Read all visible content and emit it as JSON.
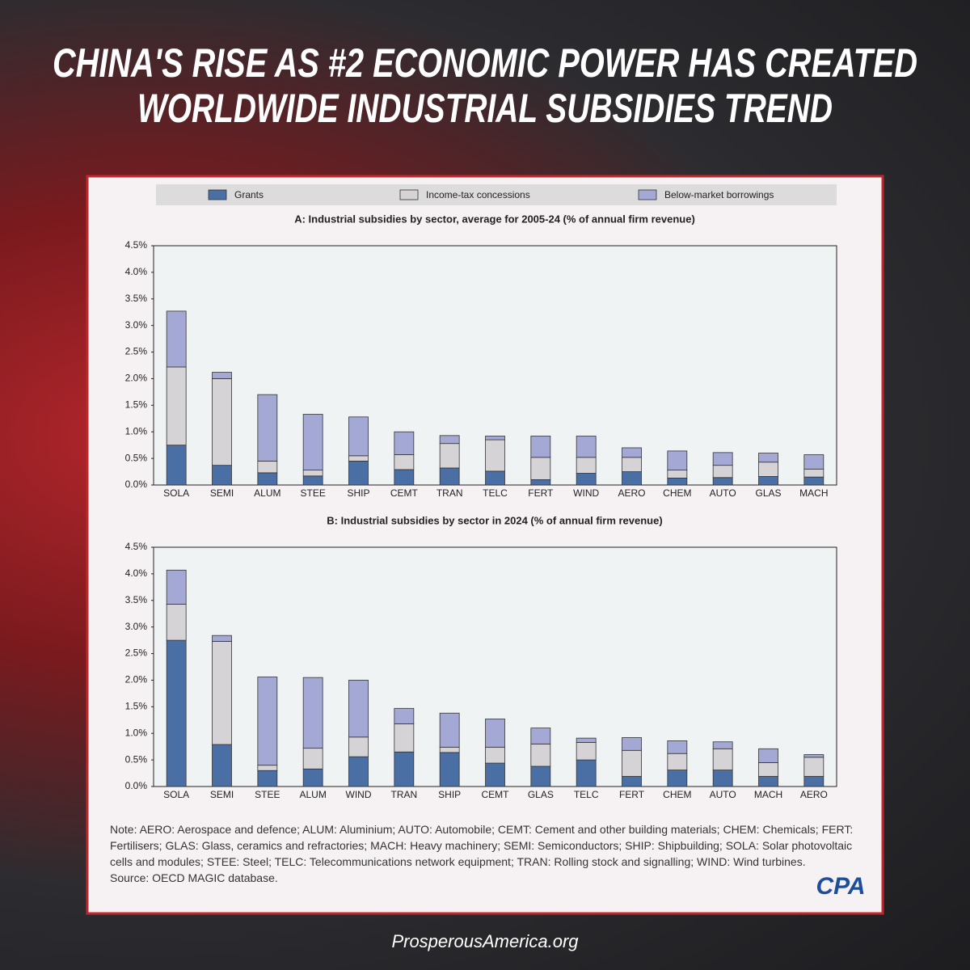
{
  "headline": [
    "CHINA'S RISE AS #2 ECONOMIC POWER HAS CREATED",
    "WORLDWIDE INDUSTRIAL SUBSIDIES TREND"
  ],
  "chart_data": [
    {
      "type": "stacked_bar",
      "title": "A: Industrial subsidies by sector, average for 2005-24 (% of annual firm revenue)",
      "categories": [
        "SOLA",
        "SEMI",
        "ALUM",
        "STEE",
        "SHIP",
        "CEMT",
        "TRAN",
        "TELC",
        "FERT",
        "WIND",
        "AERO",
        "CHEM",
        "AUTO",
        "GLAS",
        "MACH"
      ],
      "series": [
        {
          "name": "Grants",
          "color": "#4a6fa5",
          "values": [
            0.75,
            0.37,
            0.23,
            0.17,
            0.45,
            0.29,
            0.32,
            0.26,
            0.1,
            0.22,
            0.25,
            0.13,
            0.14,
            0.16,
            0.15
          ]
        },
        {
          "name": "Income-tax concessions",
          "color": "#d6d3d6",
          "values": [
            1.47,
            1.63,
            0.22,
            0.11,
            0.1,
            0.28,
            0.46,
            0.59,
            0.42,
            0.3,
            0.27,
            0.15,
            0.23,
            0.27,
            0.15
          ]
        },
        {
          "name": "Below-market borrowings",
          "color": "#a3a9d4",
          "values": [
            1.05,
            0.12,
            1.25,
            1.05,
            0.73,
            0.43,
            0.15,
            0.07,
            0.4,
            0.4,
            0.18,
            0.36,
            0.24,
            0.17,
            0.27
          ]
        }
      ],
      "ylim": [
        0,
        4.5
      ],
      "yticks": [
        {
          "value": 0,
          "label": "0.0%"
        },
        {
          "value": 0.5,
          "label": "0.5%"
        },
        {
          "value": 1,
          "label": "1.0%"
        },
        {
          "value": 1.5,
          "label": "1.5%"
        },
        {
          "value": 2,
          "label": "2.0%"
        },
        {
          "value": 2.5,
          "label": "2.5%"
        },
        {
          "value": 3,
          "label": "3.0%"
        },
        {
          "value": 3.5,
          "label": "3.5%"
        },
        {
          "value": 4,
          "label": "4.0%"
        },
        {
          "value": 4.5,
          "label": "4.5%"
        }
      ]
    },
    {
      "type": "stacked_bar",
      "title": "B: Industrial subsidies by sector in 2024 (% of annual firm revenue)",
      "categories": [
        "SOLA",
        "SEMI",
        "STEE",
        "ALUM",
        "WIND",
        "TRAN",
        "SHIP",
        "CEMT",
        "GLAS",
        "TELC",
        "FERT",
        "CHEM",
        "AUTO",
        "MACH",
        "AERO"
      ],
      "series": [
        {
          "color": "#4a6fa5",
          "values": [
            2.75,
            0.79,
            0.3,
            0.33,
            0.56,
            0.65,
            0.64,
            0.44,
            0.38,
            0.5,
            0.19,
            0.31,
            0.31,
            0.19,
            0.19
          ]
        },
        {
          "color": "#d6d3d6",
          "values": [
            0.68,
            1.94,
            0.1,
            0.39,
            0.37,
            0.53,
            0.1,
            0.3,
            0.42,
            0.33,
            0.49,
            0.31,
            0.4,
            0.26,
            0.36
          ]
        },
        {
          "color": "#a3a9d4",
          "values": [
            0.64,
            0.11,
            1.66,
            1.33,
            1.07,
            0.29,
            0.64,
            0.53,
            0.3,
            0.08,
            0.24,
            0.24,
            0.13,
            0.26,
            0.05
          ]
        }
      ],
      "ylim": [
        0,
        4.5
      ],
      "yticks": [
        {
          "value": 0,
          "label": "0.0%"
        },
        {
          "value": 0.5,
          "label": "0.5%"
        },
        {
          "value": 1,
          "label": "1.0%"
        },
        {
          "value": 1.5,
          "label": "1.5%"
        },
        {
          "value": 2,
          "label": "2.0%"
        },
        {
          "value": 2.5,
          "label": "2.5%"
        },
        {
          "value": 3,
          "label": "3.0%"
        },
        {
          "value": 3.5,
          "label": "3.5%"
        },
        {
          "value": 4,
          "label": "4.0%"
        },
        {
          "value": 4.5,
          "label": "4.5%"
        }
      ]
    }
  ],
  "note": "Note: AERO: Aerospace and defence; ALUM: Aluminium; AUTO: Automobile; CEMT: Cement and other building materials; CHEM: Chemicals; FERT: Fertilisers; GLAS: Glass, ceramics and refractories; MACH: Heavy machinery; SEMI: Semiconductors; SHIP: Shipbuilding; SOLA: Solar photovoltaic cells and modules; STEE: Steel; TELC: Telecommunications network equipment; TRAN: Rolling stock and signalling; WIND: Wind turbines.",
  "source": "Source: OECD MAGIC database.",
  "logo": "CPA",
  "website": "ProsperousAmerica.org"
}
